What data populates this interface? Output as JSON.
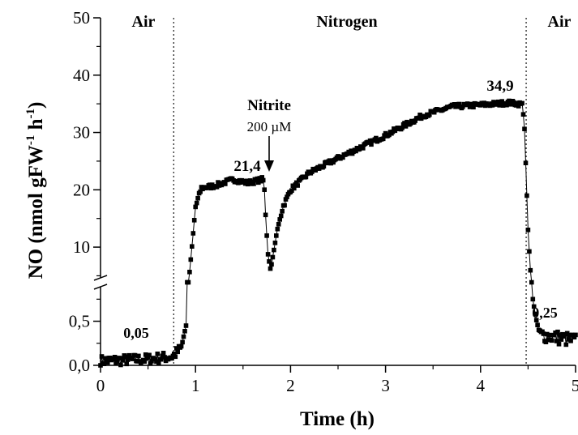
{
  "chart_data": {
    "type": "scatter",
    "xlabel": "Time (h)",
    "ylabel_main": "NO (nmol gFW",
    "ylabel_sup1": "-1",
    "ylabel_mid": " h",
    "ylabel_sup2": "-1",
    "ylabel_end": ")",
    "xlim": [
      0,
      5
    ],
    "x_ticks": [
      0,
      1,
      2,
      3,
      4,
      5
    ],
    "x_tick_labels": [
      "0",
      "1",
      "2",
      "3",
      "4",
      "5"
    ],
    "y_broken_axis": true,
    "ylim_lower": [
      0,
      0.9
    ],
    "y_lower_ticks": [
      0,
      0.5
    ],
    "y_lower_tick_labels": [
      "0,0",
      "0,5"
    ],
    "ylim_upper": [
      4.5,
      50
    ],
    "y_upper_ticks": [
      10,
      20,
      30,
      40,
      50
    ],
    "y_upper_tick_labels": [
      "10",
      "20",
      "30",
      "40",
      "50"
    ],
    "phase_boundaries": [
      0.77,
      4.48
    ],
    "phases": [
      "Air",
      "Nitrogen",
      "Air"
    ],
    "annotations": {
      "val_air1": "0,05",
      "val_plateau1": "21,4",
      "nitrite_label": "Nitrite",
      "nitrite_dose": "200 µM",
      "val_peak": "34,9",
      "val_air2": "0,25"
    },
    "nitrite_addition_x": 1.72,
    "keypoints": [
      [
        0.0,
        0.05
      ],
      [
        0.5,
        0.07
      ],
      [
        0.76,
        0.1
      ],
      [
        0.85,
        0.2
      ],
      [
        0.9,
        0.45
      ],
      [
        0.94,
        6
      ],
      [
        1.0,
        17
      ],
      [
        1.06,
        20.3
      ],
      [
        1.2,
        20.7
      ],
      [
        1.4,
        21.8
      ],
      [
        1.55,
        21.2
      ],
      [
        1.7,
        21.8
      ],
      [
        1.72,
        21.5
      ],
      [
        1.74,
        15
      ],
      [
        1.76,
        9
      ],
      [
        1.79,
        6
      ],
      [
        1.82,
        9
      ],
      [
        1.86,
        13
      ],
      [
        1.92,
        17
      ],
      [
        2.0,
        20
      ],
      [
        2.2,
        23
      ],
      [
        2.5,
        25.5
      ],
      [
        3.0,
        29.5
      ],
      [
        3.4,
        33
      ],
      [
        3.7,
        34.5
      ],
      [
        4.0,
        34.8
      ],
      [
        4.3,
        35.2
      ],
      [
        4.44,
        34.9
      ],
      [
        4.46,
        32
      ],
      [
        4.48,
        22
      ],
      [
        4.5,
        13
      ],
      [
        4.52,
        7
      ],
      [
        4.55,
        0.75
      ],
      [
        4.58,
        0.55
      ],
      [
        4.62,
        0.35
      ],
      [
        5.0,
        0.28
      ]
    ]
  }
}
